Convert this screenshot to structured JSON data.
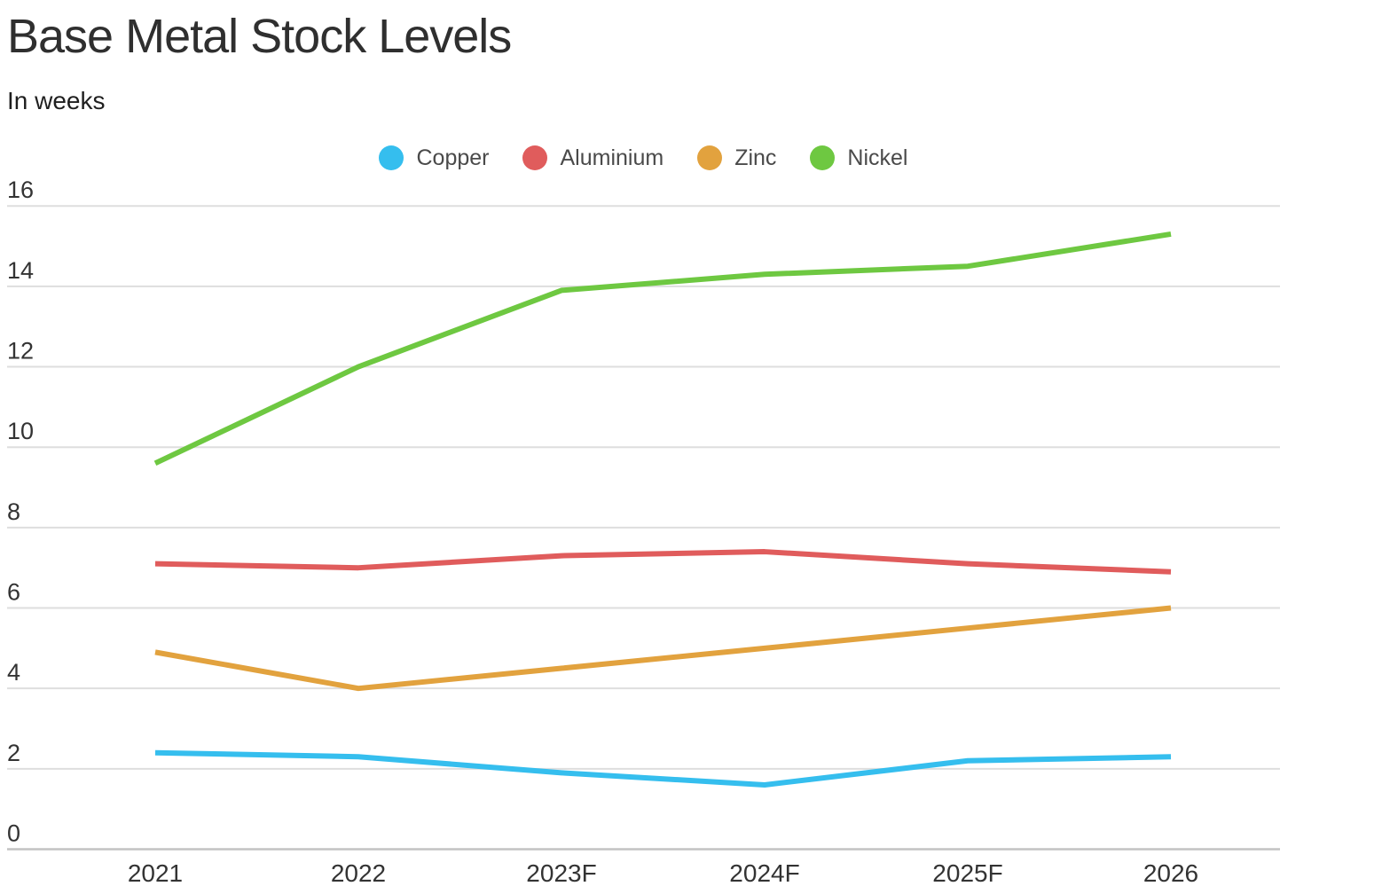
{
  "header": {
    "title": "Base Metal Stock Levels",
    "subtitle": "In weeks"
  },
  "chart_data": {
    "type": "line",
    "title": "Base Metal Stock Levels",
    "subtitle": "In weeks",
    "unit": "weeks",
    "x": [
      "2021",
      "2022",
      "2023F",
      "2024F",
      "2025F",
      "2026"
    ],
    "series": [
      {
        "name": "Copper",
        "color": "#35beee",
        "values": [
          2.4,
          2.3,
          1.9,
          1.6,
          2.2,
          2.3
        ]
      },
      {
        "name": "Aluminium",
        "color": "#e05c5c",
        "values": [
          7.1,
          7.0,
          7.3,
          7.4,
          7.1,
          6.9
        ]
      },
      {
        "name": "Zinc",
        "color": "#e2a23e",
        "values": [
          4.9,
          4.0,
          4.5,
          5.0,
          5.5,
          6.0
        ]
      },
      {
        "name": "Nickel",
        "color": "#6ec841",
        "values": [
          9.6,
          12.0,
          13.9,
          14.3,
          14.5,
          15.3
        ]
      }
    ],
    "ylim": [
      0,
      16
    ],
    "yticks": [
      0,
      2,
      4,
      6,
      8,
      10,
      12,
      14,
      16
    ],
    "grid": true,
    "legend_position": "top-center",
    "axis_label_color": "#333333",
    "gridline_color": "#dedede",
    "baseline_color": "#c3c3c3",
    "line_width": 6
  }
}
